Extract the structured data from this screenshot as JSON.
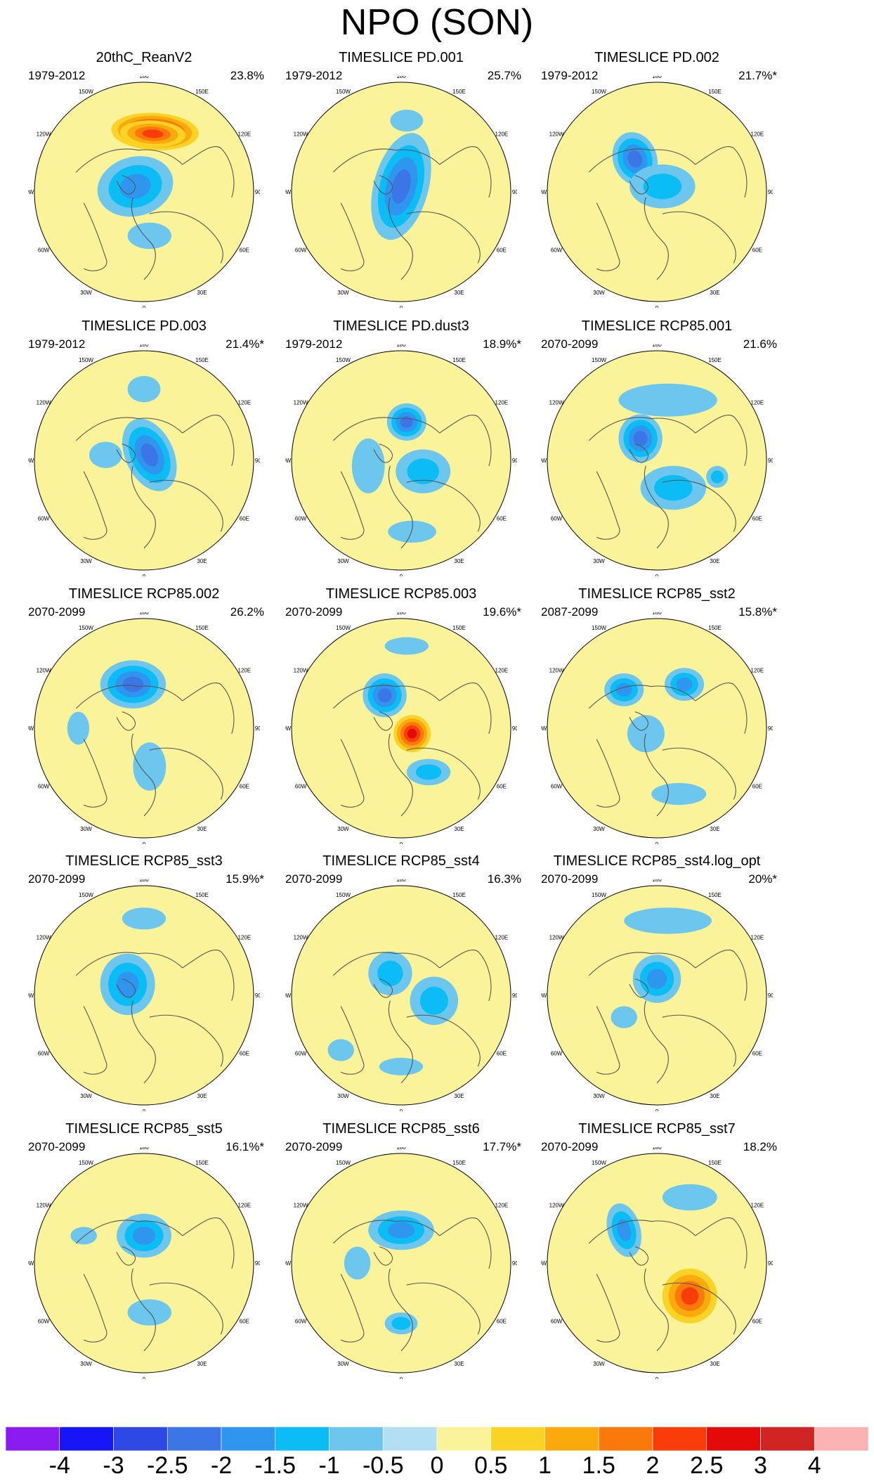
{
  "title": "NPO (SON)",
  "lon_labels": [
    "180",
    "150E",
    "120E",
    "90E",
    "60E",
    "30E",
    "0",
    "30W",
    "60W",
    "90W",
    "120W",
    "150W"
  ],
  "panels": [
    {
      "title": "20thC_ReanV2",
      "period": "1979-2012",
      "percent": "23.8%",
      "features": [
        [
          "3",
          0.1,
          -0.55,
          0.4,
          0.17,
          3
        ],
        [
          "2",
          0.08,
          -0.53,
          0.3,
          0.12,
          3
        ],
        [
          "-1.5",
          -0.08,
          -0.05,
          0.35,
          0.27,
          -15
        ],
        [
          "-0.5",
          0.05,
          0.4,
          0.2,
          0.12,
          0
        ]
      ]
    },
    {
      "title": "TIMESLICE PD.001",
      "period": "1979-2012",
      "percent": "25.7%",
      "features": [
        [
          "-2",
          0,
          -0.05,
          0.25,
          0.5,
          15
        ],
        [
          "-0.5",
          0.05,
          -0.65,
          0.15,
          0.1,
          0
        ]
      ]
    },
    {
      "title": "TIMESLICE PD.002",
      "period": "1979-2012",
      "percent": "21.7%*",
      "features": [
        [
          "-2",
          -0.2,
          -0.3,
          0.2,
          0.25,
          -20
        ],
        [
          "-1",
          0.05,
          -0.05,
          0.3,
          0.2,
          0
        ]
      ]
    },
    {
      "title": "TIMESLICE PD.003",
      "period": "1979-2012",
      "percent": "21.4%*",
      "features": [
        [
          "-2",
          0.05,
          -0.05,
          0.22,
          0.35,
          -25
        ],
        [
          "-0.5",
          -0.35,
          -0.05,
          0.15,
          0.12,
          0
        ],
        [
          "-0.5",
          0,
          -0.65,
          0.15,
          0.12,
          0
        ]
      ]
    },
    {
      "title": "TIMESLICE PD.dust3",
      "period": "1979-2012",
      "percent": "18.9%*",
      "features": [
        [
          "-2",
          0.05,
          -0.35,
          0.18,
          0.17,
          0
        ],
        [
          "-1",
          0.2,
          0.1,
          0.25,
          0.2,
          0
        ],
        [
          "-0.5",
          -0.3,
          0.05,
          0.15,
          0.25,
          0
        ],
        [
          "-0.5",
          0.1,
          0.65,
          0.22,
          0.1,
          0
        ]
      ]
    },
    {
      "title": "TIMESLICE RCP85.001",
      "period": "2070-2099",
      "percent": "21.6%",
      "features": [
        [
          "-2",
          -0.15,
          -0.2,
          0.2,
          0.22,
          0
        ],
        [
          "-1",
          0.15,
          0.25,
          0.3,
          0.2,
          0
        ],
        [
          "-0.5",
          0.1,
          -0.55,
          0.45,
          0.15,
          0
        ],
        [
          "-1",
          0.55,
          0.15,
          0.1,
          0.1,
          0
        ]
      ]
    },
    {
      "title": "TIMESLICE RCP85.002",
      "period": "2070-2099",
      "percent": "26.2%",
      "features": [
        [
          "-2",
          -0.1,
          -0.4,
          0.3,
          0.22,
          0
        ],
        [
          "-0.5",
          0.05,
          0.35,
          0.15,
          0.22,
          0
        ],
        [
          "-0.5",
          -0.6,
          0,
          0.1,
          0.15,
          0
        ]
      ]
    },
    {
      "title": "TIMESLICE RCP85.003",
      "period": "2070-2099",
      "percent": "19.6%*",
      "features": [
        [
          "-2",
          -0.15,
          -0.3,
          0.2,
          0.2,
          0
        ],
        [
          "2.5",
          0.1,
          0.05,
          0.17,
          0.17,
          0
        ],
        [
          "-0.5",
          0.05,
          -0.75,
          0.2,
          0.08,
          0
        ],
        [
          "-1",
          0.25,
          0.4,
          0.2,
          0.12,
          0
        ]
      ]
    },
    {
      "title": "TIMESLICE RCP85_sst2",
      "period": "2087-2099",
      "percent": "15.8%*",
      "features": [
        [
          "-1.5",
          -0.3,
          -0.35,
          0.18,
          0.15,
          0
        ],
        [
          "-1.5",
          0.25,
          -0.4,
          0.18,
          0.15,
          0
        ],
        [
          "-0.5",
          -0.1,
          0.05,
          0.17,
          0.17,
          0
        ],
        [
          "-0.5",
          0.2,
          0.6,
          0.25,
          0.1,
          0
        ]
      ]
    },
    {
      "title": "TIMESLICE RCP85_sst3",
      "period": "2070-2099",
      "percent": "15.9%*",
      "features": [
        [
          "-1.5",
          -0.15,
          -0.1,
          0.25,
          0.28,
          0
        ],
        [
          "-0.5",
          0,
          -0.7,
          0.2,
          0.1,
          0
        ]
      ]
    },
    {
      "title": "TIMESLICE RCP85_sst4",
      "period": "2070-2099",
      "percent": "16.3%",
      "features": [
        [
          "-1",
          -0.1,
          -0.2,
          0.2,
          0.2,
          0
        ],
        [
          "-1",
          0.3,
          0.05,
          0.22,
          0.22,
          0
        ],
        [
          "-0.5",
          -0.55,
          0.5,
          0.12,
          0.1,
          0
        ],
        [
          "-0.5",
          0,
          0.65,
          0.2,
          0.08,
          0
        ]
      ]
    },
    {
      "title": "TIMESLICE RCP85_sst4.log_opt",
      "period": "2070-2099",
      "percent": "20%*",
      "features": [
        [
          "-1.5",
          0,
          -0.15,
          0.22,
          0.22,
          0
        ],
        [
          "-0.5",
          0.1,
          -0.68,
          0.4,
          0.12,
          0
        ],
        [
          "-0.5",
          -0.3,
          0.2,
          0.12,
          0.1,
          0
        ]
      ]
    },
    {
      "title": "TIMESLICE RCP85_sst5",
      "period": "2070-2099",
      "percent": "16.1%*",
      "features": [
        [
          "-1.5",
          0,
          -0.25,
          0.25,
          0.2,
          0
        ],
        [
          "-0.5",
          -0.55,
          -0.25,
          0.12,
          0.08,
          0
        ],
        [
          "-0.5",
          0.05,
          0.45,
          0.2,
          0.12,
          0
        ]
      ]
    },
    {
      "title": "TIMESLICE RCP85_sst6",
      "period": "2070-2099",
      "percent": "17.7%*",
      "features": [
        [
          "-1.5",
          0,
          -0.3,
          0.3,
          0.18,
          0
        ],
        [
          "-0.5",
          -0.4,
          0,
          0.12,
          0.15,
          0
        ],
        [
          "-1",
          0,
          0.55,
          0.15,
          0.1,
          0
        ]
      ]
    },
    {
      "title": "TIMESLICE RCP85_sst7",
      "period": "2070-2099",
      "percent": "18.2%",
      "features": [
        [
          "-1.5",
          -0.3,
          -0.3,
          0.15,
          0.25,
          -15
        ],
        [
          "2",
          0.3,
          0.3,
          0.25,
          0.25,
          0
        ],
        [
          "-0.5",
          0.3,
          -0.6,
          0.25,
          0.12,
          0
        ]
      ]
    }
  ],
  "colorbar": {
    "labels": [
      "-4",
      "-3",
      "-2.5",
      "-2",
      "-1.5",
      "-1",
      "-0.5",
      "0",
      "0.5",
      "1",
      "1.5",
      "2",
      "2.5",
      "3",
      "4"
    ],
    "colors": [
      "#8a1cf0",
      "#1515f5",
      "#2e48e6",
      "#3b75e6",
      "#2f96f0",
      "#0cbcf5",
      "#6cc6ee",
      "#b3dff5",
      "#fbf39a",
      "#fbd226",
      "#fbaa0e",
      "#fa790a",
      "#f93c0a",
      "#e50a0a",
      "#d02424",
      "#fbb2b2"
    ],
    "background_level": "0",
    "background_color": "#fbf39a",
    "negative_background_color": "#b3dff5"
  }
}
